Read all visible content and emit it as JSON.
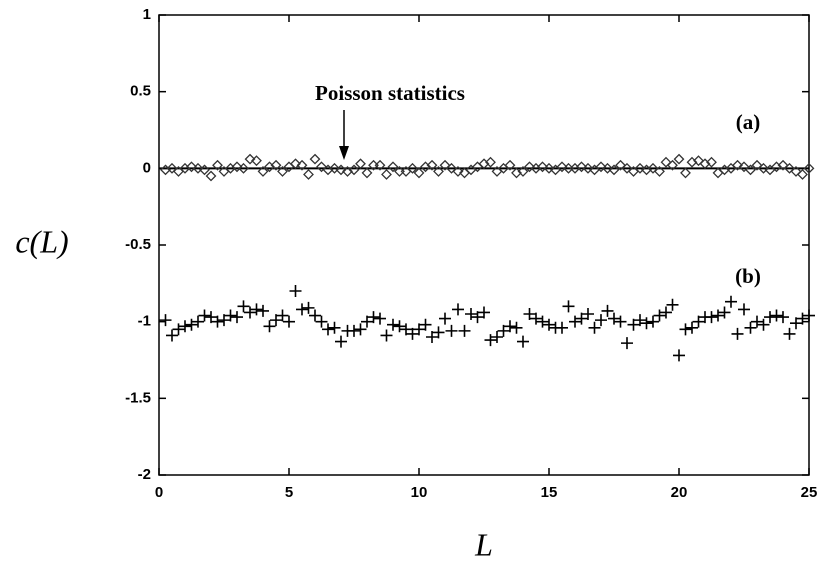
{
  "chart_data": {
    "type": "scatter",
    "xlabel": "L",
    "ylabel": "c(L)",
    "annotations": [
      {
        "text": "Poisson statistics"
      }
    ],
    "reference_y": 0,
    "x": [
      0.25,
      0.5,
      0.75,
      1,
      1.25,
      1.5,
      1.75,
      2,
      2.25,
      2.5,
      2.75,
      3,
      3.25,
      3.5,
      3.75,
      4,
      4.25,
      4.5,
      4.75,
      5,
      5.25,
      5.5,
      5.75,
      6,
      6.25,
      6.5,
      6.75,
      7,
      7.25,
      7.5,
      7.75,
      8,
      8.25,
      8.5,
      8.75,
      9,
      9.25,
      9.5,
      9.75,
      10,
      10.25,
      10.5,
      10.75,
      11,
      11.25,
      11.5,
      11.75,
      12,
      12.25,
      12.5,
      12.75,
      13,
      13.25,
      13.5,
      13.75,
      14,
      14.25,
      14.5,
      14.75,
      15,
      15.25,
      15.5,
      15.75,
      16,
      16.25,
      16.5,
      16.75,
      17,
      17.25,
      17.5,
      17.75,
      18,
      18.25,
      18.5,
      18.75,
      19,
      19.25,
      19.5,
      19.75,
      20,
      20.25,
      20.5,
      20.75,
      21,
      21.25,
      21.5,
      21.75,
      22,
      22.25,
      22.5,
      22.75,
      23,
      23.25,
      23.5,
      23.75,
      24,
      24.25,
      24.5,
      24.75,
      25
    ],
    "series": [
      {
        "name": "(a)",
        "marker": "diamond",
        "color": "#333333",
        "values": [
          -0.01,
          0.0,
          -0.02,
          0.0,
          0.01,
          0.0,
          -0.01,
          -0.05,
          0.02,
          -0.02,
          0.0,
          0.01,
          0.0,
          0.06,
          0.05,
          -0.02,
          0.01,
          0.02,
          -0.02,
          0.01,
          0.03,
          0.02,
          -0.04,
          0.06,
          0.01,
          -0.01,
          0.0,
          -0.01,
          -0.02,
          -0.01,
          0.03,
          -0.03,
          0.02,
          0.02,
          -0.04,
          0.01,
          -0.02,
          -0.02,
          0.0,
          -0.03,
          0.01,
          0.02,
          -0.02,
          0.02,
          0.0,
          -0.02,
          -0.03,
          -0.01,
          0.01,
          0.03,
          0.04,
          -0.02,
          0.0,
          0.02,
          -0.03,
          -0.02,
          0.01,
          0.0,
          0.01,
          0.0,
          -0.01,
          0.01,
          0.0,
          0.0,
          0.01,
          0.0,
          -0.01,
          0.01,
          0.0,
          -0.01,
          0.02,
          0.0,
          -0.02,
          0.0,
          -0.01,
          0.0,
          -0.02,
          0.04,
          0.02,
          0.06,
          -0.03,
          0.04,
          0.05,
          0.03,
          0.04,
          -0.03,
          -0.01,
          0.0,
          0.02,
          0.01,
          -0.01,
          0.02,
          0.0,
          -0.01,
          0.01,
          0.02,
          0.0,
          -0.02,
          -0.04,
          0.0
        ]
      },
      {
        "name": "(b)",
        "marker": "plus",
        "color": "#000000",
        "values": [
          -0.99,
          -1.09,
          -1.05,
          -1.03,
          -1.02,
          -1.0,
          -0.96,
          -0.97,
          -1.0,
          -0.99,
          -0.96,
          -0.97,
          -0.9,
          -0.94,
          -0.92,
          -0.93,
          -1.03,
          -0.99,
          -0.96,
          -1.0,
          -0.8,
          -0.92,
          -0.91,
          -0.96,
          -1.0,
          -1.05,
          -1.04,
          -1.13,
          -1.06,
          -1.06,
          -1.05,
          -1.0,
          -0.97,
          -0.98,
          -1.09,
          -1.02,
          -1.03,
          -1.05,
          -1.08,
          -1.05,
          -1.02,
          -1.1,
          -1.07,
          -0.98,
          -1.06,
          -0.92,
          -1.06,
          -0.95,
          -0.97,
          -0.94,
          -1.12,
          -1.1,
          -1.06,
          -1.03,
          -1.04,
          -1.13,
          -0.95,
          -0.98,
          -1.0,
          -1.02,
          -1.04,
          -1.04,
          -0.9,
          -1.0,
          -0.98,
          -0.95,
          -1.04,
          -0.99,
          -0.93,
          -0.98,
          -1.0,
          -1.14,
          -1.02,
          -0.99,
          -1.01,
          -1.0,
          -0.96,
          -0.94,
          -0.89,
          -1.22,
          -1.05,
          -1.04,
          -1.0,
          -0.97,
          -0.97,
          -0.96,
          -0.94,
          -0.87,
          -1.08,
          -0.92,
          -1.04,
          -1.0,
          -1.02,
          -0.97,
          -0.96,
          -0.97,
          -1.08,
          -1.01,
          -0.98,
          -0.96
        ]
      }
    ],
    "xlim": [
      0,
      25
    ],
    "xticks": [
      0,
      5,
      10,
      15,
      20,
      25
    ],
    "ylim": [
      -2,
      1
    ],
    "yticks": [
      -2,
      -1.5,
      -1,
      -0.5,
      0,
      0.5,
      1
    ]
  }
}
